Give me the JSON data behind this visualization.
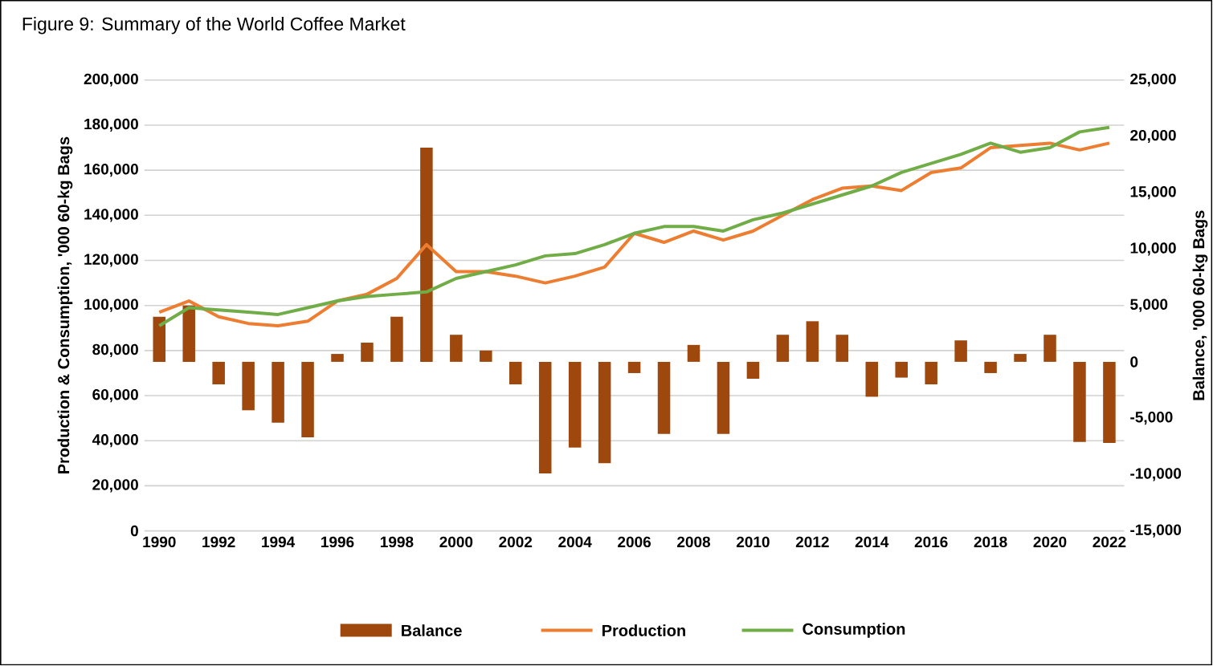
{
  "chart_data": {
    "type": "line",
    "title": "Figure 9: Summary of the World Coffee Market",
    "ylabel": "Production & Consumption, '000 60-kg Bags",
    "y2label": "Balance, '000 60-kg Bags",
    "x": [
      1990,
      1991,
      1992,
      1993,
      1994,
      1995,
      1996,
      1997,
      1998,
      1999,
      2000,
      2001,
      2002,
      2003,
      2004,
      2005,
      2006,
      2007,
      2008,
      2009,
      2010,
      2011,
      2012,
      2013,
      2014,
      2015,
      2016,
      2017,
      2018,
      2019,
      2020,
      2021,
      2022
    ],
    "series": [
      {
        "name": "Balance",
        "type": "bar",
        "axis": "y2",
        "color": "#9e480e",
        "values": [
          4000,
          5000,
          -2000,
          -4300,
          -5400,
          -6700,
          700,
          1700,
          4000,
          19000,
          2400,
          1000,
          -2000,
          -9900,
          -7600,
          -9000,
          -1000,
          -6400,
          1500,
          -6400,
          -1500,
          2400,
          3600,
          2400,
          -3100,
          -1400,
          -2000,
          1900,
          -1000,
          700,
          2400,
          -7100,
          -7200
        ]
      },
      {
        "name": "Production",
        "color": "#ed7d31",
        "values": [
          97000,
          102000,
          95000,
          92000,
          91000,
          93000,
          102000,
          105000,
          112000,
          127000,
          115000,
          115000,
          113000,
          110000,
          113000,
          117000,
          132000,
          128000,
          133000,
          129000,
          133000,
          140000,
          147000,
          152000,
          153000,
          151000,
          159000,
          161000,
          170000,
          171000,
          172000,
          169000,
          172000
        ]
      },
      {
        "name": "Consumption",
        "color": "#70ad47",
        "values": [
          91000,
          99000,
          98000,
          97000,
          96000,
          99000,
          102000,
          104000,
          105000,
          106000,
          112000,
          115000,
          118000,
          122000,
          123000,
          127000,
          132000,
          135000,
          135000,
          133000,
          138000,
          141000,
          145000,
          149000,
          153000,
          159000,
          163000,
          167000,
          172000,
          168000,
          170000,
          177000,
          179000
        ]
      }
    ],
    "xlim": [
      1989.5,
      2022.5
    ],
    "xticks": [
      1990,
      1992,
      1994,
      1996,
      1998,
      2000,
      2002,
      2004,
      2006,
      2008,
      2010,
      2012,
      2014,
      2016,
      2018,
      2020,
      2022
    ],
    "ylim": [
      0,
      200000
    ],
    "yticks": [
      {
        "value": 0,
        "label": "0"
      },
      {
        "value": 20000,
        "label": "20,000"
      },
      {
        "value": 40000,
        "label": "40,000"
      },
      {
        "value": 60000,
        "label": "60,000"
      },
      {
        "value": 80000,
        "label": "80,000"
      },
      {
        "value": 100000,
        "label": "100,000"
      },
      {
        "value": 120000,
        "label": "120,000"
      },
      {
        "value": 140000,
        "label": "140,000"
      },
      {
        "value": 160000,
        "label": "160,000"
      },
      {
        "value": 180000,
        "label": "180,000"
      },
      {
        "value": 200000,
        "label": "200,000"
      }
    ],
    "y2lim": [
      -15000,
      25000
    ],
    "y2ticks": [
      {
        "value": -15000,
        "label": "-15,000"
      },
      {
        "value": -10000,
        "label": "-10,000"
      },
      {
        "value": -5000,
        "label": "-5,000"
      },
      {
        "value": 0,
        "label": "0"
      },
      {
        "value": 5000,
        "label": "5,000"
      },
      {
        "value": 10000,
        "label": "10,000"
      },
      {
        "value": 15000,
        "label": "15,000"
      },
      {
        "value": 20000,
        "label": "20,000"
      },
      {
        "value": 25000,
        "label": "25,000"
      }
    ],
    "grid": "y",
    "legend": "bottom"
  }
}
